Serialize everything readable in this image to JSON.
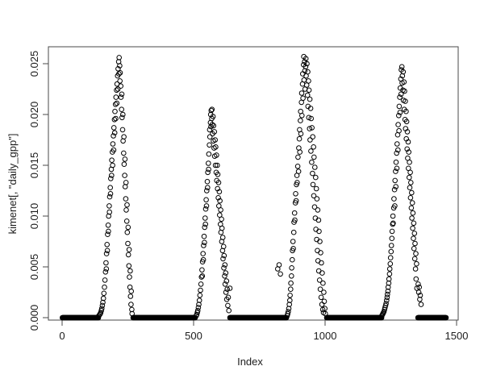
{
  "figure": {
    "background": "#ffffff",
    "marker_color": "#000000"
  },
  "chart_data": {
    "type": "scatter",
    "title": "",
    "xlabel": "Index",
    "ylabel": "kimenet[, \"daily_gpp\"]",
    "xlim": [
      0,
      1500
    ],
    "ylim": [
      0,
      0.025
    ],
    "x_ticks": [
      "0",
      "500",
      "1000",
      "1500"
    ],
    "y_ticks": [
      "0.000",
      "0.005",
      "0.010",
      "0.015",
      "0.020",
      "0.025"
    ],
    "grid": false,
    "legend": "none",
    "marker": "open-circle",
    "marker_color": "#000000",
    "zero_runs": [
      [
        1,
        138
      ],
      [
        270,
        506
      ],
      [
        638,
        853
      ],
      [
        1006,
        1215
      ],
      [
        1353,
        1460
      ]
    ],
    "points": [
      [
        140,
        0.0002
      ],
      [
        143,
        0.0003
      ],
      [
        145,
        0.0004
      ],
      [
        147,
        0.0005
      ],
      [
        149,
        0.0007
      ],
      [
        151,
        0.0009
      ],
      [
        153,
        0.0012
      ],
      [
        155,
        0.0015
      ],
      [
        157,
        0.0019
      ],
      [
        159,
        0.0024
      ],
      [
        161,
        0.003
      ],
      [
        163,
        0.0037
      ],
      [
        165,
        0.0045
      ],
      [
        167,
        0.0054
      ],
      [
        168,
        0.0048
      ],
      [
        169,
        0.0063
      ],
      [
        171,
        0.0072
      ],
      [
        172,
        0.0066
      ],
      [
        173,
        0.0082
      ],
      [
        175,
        0.0091
      ],
      [
        176,
        0.0085
      ],
      [
        177,
        0.01
      ],
      [
        179,
        0.011
      ],
      [
        180,
        0.0104
      ],
      [
        181,
        0.0119
      ],
      [
        183,
        0.0128
      ],
      [
        184,
        0.0122
      ],
      [
        185,
        0.0137
      ],
      [
        187,
        0.0146
      ],
      [
        188,
        0.014
      ],
      [
        189,
        0.0155
      ],
      [
        191,
        0.0163
      ],
      [
        192,
        0.015
      ],
      [
        193,
        0.0171
      ],
      [
        195,
        0.0179
      ],
      [
        196,
        0.0165
      ],
      [
        197,
        0.0187
      ],
      [
        199,
        0.0195
      ],
      [
        200,
        0.0182
      ],
      [
        201,
        0.0203
      ],
      [
        203,
        0.021
      ],
      [
        204,
        0.0196
      ],
      [
        205,
        0.0217
      ],
      [
        207,
        0.0224
      ],
      [
        208,
        0.0211
      ],
      [
        209,
        0.023
      ],
      [
        211,
        0.0238
      ],
      [
        212,
        0.0225
      ],
      [
        213,
        0.0245
      ],
      [
        215,
        0.0252
      ],
      [
        216,
        0.024
      ],
      [
        217,
        0.0256
      ],
      [
        219,
        0.0248
      ],
      [
        220,
        0.0233
      ],
      [
        221,
        0.0241
      ],
      [
        223,
        0.0228
      ],
      [
        224,
        0.0217
      ],
      [
        226,
        0.0205
      ],
      [
        227,
        0.022
      ],
      [
        228,
        0.0197
      ],
      [
        230,
        0.0185
      ],
      [
        231,
        0.02
      ],
      [
        232,
        0.0174
      ],
      [
        234,
        0.0162
      ],
      [
        235,
        0.0178
      ],
      [
        236,
        0.0151
      ],
      [
        238,
        0.014
      ],
      [
        239,
        0.0156
      ],
      [
        240,
        0.0129
      ],
      [
        242,
        0.0117
      ],
      [
        243,
        0.0133
      ],
      [
        244,
        0.0106
      ],
      [
        246,
        0.0095
      ],
      [
        247,
        0.0111
      ],
      [
        248,
        0.0084
      ],
      [
        250,
        0.0073
      ],
      [
        251,
        0.0089
      ],
      [
        252,
        0.0062
      ],
      [
        254,
        0.0051
      ],
      [
        255,
        0.0067
      ],
      [
        256,
        0.004
      ],
      [
        258,
        0.003
      ],
      [
        259,
        0.0046
      ],
      [
        260,
        0.0021
      ],
      [
        262,
        0.0013
      ],
      [
        263,
        0.0026
      ],
      [
        265,
        0.0008
      ],
      [
        266,
        0.0004
      ],
      [
        510,
        0.0002
      ],
      [
        512,
        0.0003
      ],
      [
        514,
        0.0005
      ],
      [
        516,
        0.0007
      ],
      [
        518,
        0.001
      ],
      [
        520,
        0.0013
      ],
      [
        522,
        0.0017
      ],
      [
        524,
        0.0022
      ],
      [
        526,
        0.0027
      ],
      [
        528,
        0.0033
      ],
      [
        530,
        0.004
      ],
      [
        532,
        0.0047
      ],
      [
        533,
        0.0041
      ],
      [
        534,
        0.0055
      ],
      [
        536,
        0.0063
      ],
      [
        537,
        0.0057
      ],
      [
        538,
        0.0071
      ],
      [
        540,
        0.008
      ],
      [
        541,
        0.0074
      ],
      [
        542,
        0.0089
      ],
      [
        544,
        0.0098
      ],
      [
        545,
        0.0092
      ],
      [
        546,
        0.0107
      ],
      [
        548,
        0.0116
      ],
      [
        549,
        0.011
      ],
      [
        550,
        0.0125
      ],
      [
        552,
        0.0134
      ],
      [
        553,
        0.0128
      ],
      [
        554,
        0.0143
      ],
      [
        556,
        0.0152
      ],
      [
        557,
        0.0146
      ],
      [
        558,
        0.0161
      ],
      [
        560,
        0.017
      ],
      [
        561,
        0.0185
      ],
      [
        562,
        0.0178
      ],
      [
        564,
        0.0192
      ],
      [
        565,
        0.02
      ],
      [
        566,
        0.0188
      ],
      [
        567,
        0.0204
      ],
      [
        569,
        0.0196
      ],
      [
        570,
        0.0205
      ],
      [
        571,
        0.019
      ],
      [
        572,
        0.0181
      ],
      [
        574,
        0.0198
      ],
      [
        575,
        0.0174
      ],
      [
        576,
        0.0189
      ],
      [
        578,
        0.0167
      ],
      [
        579,
        0.0183
      ],
      [
        580,
        0.0159
      ],
      [
        582,
        0.0175
      ],
      [
        583,
        0.015
      ],
      [
        584,
        0.0168
      ],
      [
        586,
        0.0143
      ],
      [
        587,
        0.016
      ],
      [
        588,
        0.0135
      ],
      [
        590,
        0.015
      ],
      [
        591,
        0.0127
      ],
      [
        592,
        0.0141
      ],
      [
        594,
        0.0118
      ],
      [
        595,
        0.0133
      ],
      [
        596,
        0.011
      ],
      [
        598,
        0.0124
      ],
      [
        599,
        0.0101
      ],
      [
        600,
        0.0115
      ],
      [
        602,
        0.0092
      ],
      [
        603,
        0.0106
      ],
      [
        604,
        0.0084
      ],
      [
        606,
        0.0097
      ],
      [
        607,
        0.0075
      ],
      [
        608,
        0.0088
      ],
      [
        610,
        0.0066
      ],
      [
        611,
        0.0079
      ],
      [
        612,
        0.0058
      ],
      [
        614,
        0.007
      ],
      [
        615,
        0.0049
      ],
      [
        616,
        0.0061
      ],
      [
        618,
        0.0041
      ],
      [
        619,
        0.0052
      ],
      [
        620,
        0.0033
      ],
      [
        622,
        0.0044
      ],
      [
        623,
        0.0025
      ],
      [
        625,
        0.0036
      ],
      [
        626,
        0.0018
      ],
      [
        628,
        0.0028
      ],
      [
        630,
        0.0012
      ],
      [
        632,
        0.002
      ],
      [
        634,
        0.0007
      ],
      [
        638,
        0.0029
      ],
      [
        820,
        0.0048
      ],
      [
        825,
        0.0052
      ],
      [
        830,
        0.0043
      ],
      [
        856,
        0.0002
      ],
      [
        858,
        0.0004
      ],
      [
        860,
        0.0006
      ],
      [
        862,
        0.0009
      ],
      [
        864,
        0.0013
      ],
      [
        866,
        0.0017
      ],
      [
        867,
        0.0022
      ],
      [
        869,
        0.0028
      ],
      [
        870,
        0.0034
      ],
      [
        872,
        0.0041
      ],
      [
        873,
        0.0049
      ],
      [
        875,
        0.0057
      ],
      [
        876,
        0.0066
      ],
      [
        878,
        0.0075
      ],
      [
        879,
        0.0068
      ],
      [
        881,
        0.0084
      ],
      [
        882,
        0.0094
      ],
      [
        884,
        0.0103
      ],
      [
        885,
        0.0096
      ],
      [
        887,
        0.0113
      ],
      [
        888,
        0.0122
      ],
      [
        890,
        0.0115
      ],
      [
        891,
        0.0131
      ],
      [
        893,
        0.014
      ],
      [
        894,
        0.0133
      ],
      [
        896,
        0.0149
      ],
      [
        897,
        0.0158
      ],
      [
        899,
        0.0144
      ],
      [
        900,
        0.0167
      ],
      [
        902,
        0.0176
      ],
      [
        903,
        0.0185
      ],
      [
        904,
        0.0163
      ],
      [
        906,
        0.0194
      ],
      [
        907,
        0.0203
      ],
      [
        908,
        0.0181
      ],
      [
        910,
        0.0212
      ],
      [
        911,
        0.0221
      ],
      [
        912,
        0.0199
      ],
      [
        914,
        0.023
      ],
      [
        915,
        0.024
      ],
      [
        916,
        0.0216
      ],
      [
        918,
        0.0249
      ],
      [
        919,
        0.0257
      ],
      [
        920,
        0.0234
      ],
      [
        922,
        0.0252
      ],
      [
        923,
        0.0243
      ],
      [
        924,
        0.0225
      ],
      [
        926,
        0.0247
      ],
      [
        927,
        0.0255
      ],
      [
        928,
        0.0238
      ],
      [
        930,
        0.0229
      ],
      [
        931,
        0.025
      ],
      [
        933,
        0.0219
      ],
      [
        934,
        0.0242
      ],
      [
        935,
        0.0208
      ],
      [
        937,
        0.0233
      ],
      [
        938,
        0.0197
      ],
      [
        939,
        0.0224
      ],
      [
        941,
        0.0186
      ],
      [
        942,
        0.0215
      ],
      [
        943,
        0.0175
      ],
      [
        945,
        0.0206
      ],
      [
        946,
        0.0164
      ],
      [
        947,
        0.0196
      ],
      [
        949,
        0.0153
      ],
      [
        950,
        0.0187
      ],
      [
        952,
        0.0142
      ],
      [
        953,
        0.0178
      ],
      [
        954,
        0.0131
      ],
      [
        956,
        0.0168
      ],
      [
        957,
        0.012
      ],
      [
        958,
        0.0158
      ],
      [
        960,
        0.0109
      ],
      [
        961,
        0.0148
      ],
      [
        963,
        0.0098
      ],
      [
        964,
        0.0138
      ],
      [
        965,
        0.0087
      ],
      [
        967,
        0.0127
      ],
      [
        968,
        0.0077
      ],
      [
        969,
        0.0117
      ],
      [
        971,
        0.0066
      ],
      [
        972,
        0.0106
      ],
      [
        973,
        0.0056
      ],
      [
        975,
        0.0096
      ],
      [
        976,
        0.0046
      ],
      [
        977,
        0.0085
      ],
      [
        979,
        0.0037
      ],
      [
        980,
        0.0075
      ],
      [
        982,
        0.0028
      ],
      [
        983,
        0.0064
      ],
      [
        985,
        0.002
      ],
      [
        986,
        0.0054
      ],
      [
        988,
        0.0013
      ],
      [
        989,
        0.0044
      ],
      [
        991,
        0.0008
      ],
      [
        992,
        0.0034
      ],
      [
        994,
        0.0005
      ],
      [
        995,
        0.0025
      ],
      [
        997,
        0.0016
      ],
      [
        999,
        0.0009
      ],
      [
        1001,
        0.0004
      ],
      [
        1216,
        0.0002
      ],
      [
        1218,
        0.0003
      ],
      [
        1220,
        0.0004
      ],
      [
        1222,
        0.0005
      ],
      [
        1224,
        0.0006
      ],
      [
        1226,
        0.0008
      ],
      [
        1228,
        0.001
      ],
      [
        1230,
        0.0012
      ],
      [
        1232,
        0.0014
      ],
      [
        1234,
        0.0017
      ],
      [
        1236,
        0.002
      ],
      [
        1237,
        0.0023
      ],
      [
        1239,
        0.0026
      ],
      [
        1240,
        0.003
      ],
      [
        1242,
        0.0034
      ],
      [
        1243,
        0.0038
      ],
      [
        1245,
        0.0043
      ],
      [
        1246,
        0.0048
      ],
      [
        1248,
        0.0053
      ],
      [
        1249,
        0.0059
      ],
      [
        1251,
        0.0065
      ],
      [
        1252,
        0.0071
      ],
      [
        1254,
        0.0078
      ],
      [
        1255,
        0.0085
      ],
      [
        1257,
        0.0092
      ],
      [
        1258,
        0.01
      ],
      [
        1259,
        0.0093
      ],
      [
        1261,
        0.0108
      ],
      [
        1262,
        0.0117
      ],
      [
        1264,
        0.0126
      ],
      [
        1265,
        0.011
      ],
      [
        1266,
        0.0135
      ],
      [
        1268,
        0.0144
      ],
      [
        1269,
        0.0129
      ],
      [
        1270,
        0.0153
      ],
      [
        1272,
        0.0162
      ],
      [
        1273,
        0.0147
      ],
      [
        1274,
        0.0171
      ],
      [
        1276,
        0.018
      ],
      [
        1277,
        0.0165
      ],
      [
        1278,
        0.019
      ],
      [
        1280,
        0.0199
      ],
      [
        1281,
        0.0184
      ],
      [
        1282,
        0.0208
      ],
      [
        1284,
        0.0217
      ],
      [
        1285,
        0.0202
      ],
      [
        1286,
        0.0226
      ],
      [
        1288,
        0.0235
      ],
      [
        1289,
        0.022
      ],
      [
        1290,
        0.0244
      ],
      [
        1292,
        0.0247
      ],
      [
        1293,
        0.0231
      ],
      [
        1294,
        0.0238
      ],
      [
        1296,
        0.0224
      ],
      [
        1297,
        0.0242
      ],
      [
        1298,
        0.0214
      ],
      [
        1300,
        0.0232
      ],
      [
        1301,
        0.0205
      ],
      [
        1302,
        0.0223
      ],
      [
        1304,
        0.0195
      ],
      [
        1305,
        0.0213
      ],
      [
        1306,
        0.0186
      ],
      [
        1308,
        0.0203
      ],
      [
        1309,
        0.0176
      ],
      [
        1310,
        0.0193
      ],
      [
        1312,
        0.0166
      ],
      [
        1313,
        0.0183
      ],
      [
        1314,
        0.0157
      ],
      [
        1316,
        0.0173
      ],
      [
        1317,
        0.0147
      ],
      [
        1318,
        0.0163
      ],
      [
        1320,
        0.0138
      ],
      [
        1321,
        0.0153
      ],
      [
        1322,
        0.0128
      ],
      [
        1324,
        0.0143
      ],
      [
        1325,
        0.0118
      ],
      [
        1326,
        0.0133
      ],
      [
        1328,
        0.0108
      ],
      [
        1329,
        0.0123
      ],
      [
        1330,
        0.0098
      ],
      [
        1332,
        0.0113
      ],
      [
        1333,
        0.0088
      ],
      [
        1334,
        0.0103
      ],
      [
        1336,
        0.0078
      ],
      [
        1337,
        0.0093
      ],
      [
        1338,
        0.0068
      ],
      [
        1340,
        0.0083
      ],
      [
        1341,
        0.0058
      ],
      [
        1342,
        0.0073
      ],
      [
        1344,
        0.0048
      ],
      [
        1345,
        0.0063
      ],
      [
        1346,
        0.0038
      ],
      [
        1348,
        0.0053
      ],
      [
        1349,
        0.0029
      ],
      [
        1354,
        0.0033
      ],
      [
        1356,
        0.0025
      ],
      [
        1358,
        0.003
      ],
      [
        1360,
        0.0018
      ],
      [
        1362,
        0.0022
      ],
      [
        1365,
        0.0013
      ]
    ]
  }
}
